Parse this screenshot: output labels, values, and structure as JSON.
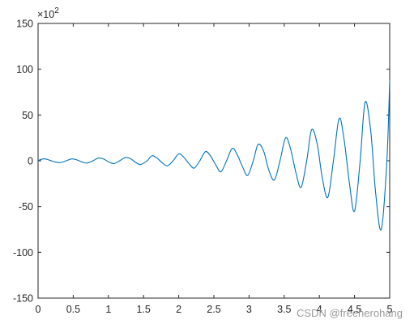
{
  "chart_data": {
    "type": "line",
    "title": "",
    "xlabel": "",
    "ylabel": "",
    "xlim": [
      0,
      5
    ],
    "ylim": [
      -150,
      150
    ],
    "y_exponent_label": "×10",
    "y_exponent_power": "2",
    "x_ticks": [
      "0",
      "0.5",
      "1",
      "1.5",
      "2",
      "2.5",
      "3",
      "3.5",
      "4",
      "4.5",
      "5"
    ],
    "y_ticks": [
      "150",
      "100",
      "50",
      "0",
      "-50",
      "-100",
      "-150"
    ],
    "x_tick_values": [
      0,
      0.5,
      1,
      1.5,
      2,
      2.5,
      3,
      3.5,
      4,
      4.5,
      5
    ],
    "y_tick_values": [
      150,
      100,
      50,
      0,
      -50,
      -100,
      -150
    ],
    "grid": false,
    "box": true,
    "series": [
      {
        "color": "#0072bd",
        "style": "oscillating sinusoid with exponentially growing amplitude",
        "points": [
          [
            0.0,
            0
          ],
          [
            0.04,
            1.5
          ],
          [
            0.1,
            2
          ],
          [
            0.17,
            0.5
          ],
          [
            0.25,
            -1.5
          ],
          [
            0.32,
            -2
          ],
          [
            0.4,
            0
          ],
          [
            0.48,
            2
          ],
          [
            0.55,
            1
          ],
          [
            0.63,
            -1.5
          ],
          [
            0.7,
            -2.5
          ],
          [
            0.78,
            0
          ],
          [
            0.86,
            3
          ],
          [
            0.93,
            2
          ],
          [
            1.01,
            -1.5
          ],
          [
            1.08,
            -3
          ],
          [
            1.16,
            0
          ],
          [
            1.24,
            3.5
          ],
          [
            1.31,
            2.5
          ],
          [
            1.39,
            -2
          ],
          [
            1.46,
            -4
          ],
          [
            1.55,
            0
          ],
          [
            1.62,
            5.5
          ],
          [
            1.69,
            3
          ],
          [
            1.77,
            -2.5
          ],
          [
            1.84,
            -5.5
          ],
          [
            1.92,
            0
          ],
          [
            2.0,
            7.5
          ],
          [
            2.07,
            4
          ],
          [
            2.15,
            -3.5
          ],
          [
            2.22,
            -8
          ],
          [
            2.3,
            0
          ],
          [
            2.38,
            10
          ],
          [
            2.45,
            5.5
          ],
          [
            2.53,
            -5
          ],
          [
            2.6,
            -12
          ],
          [
            2.68,
            0
          ],
          [
            2.76,
            13.5
          ],
          [
            2.83,
            7
          ],
          [
            2.91,
            -7
          ],
          [
            2.98,
            -16
          ],
          [
            3.06,
            0
          ],
          [
            3.13,
            18
          ],
          [
            3.21,
            10
          ],
          [
            3.28,
            -10
          ],
          [
            3.36,
            -21
          ],
          [
            3.44,
            0
          ],
          [
            3.52,
            25
          ],
          [
            3.59,
            13
          ],
          [
            3.67,
            -14
          ],
          [
            3.74,
            -29
          ],
          [
            3.82,
            0
          ],
          [
            3.89,
            34
          ],
          [
            3.97,
            18
          ],
          [
            4.04,
            -18
          ],
          [
            4.12,
            -40
          ],
          [
            4.2,
            0
          ],
          [
            4.28,
            46
          ],
          [
            4.35,
            24
          ],
          [
            4.43,
            -26
          ],
          [
            4.5,
            -55
          ],
          [
            4.58,
            0
          ],
          [
            4.65,
            64
          ],
          [
            4.73,
            33
          ],
          [
            4.8,
            -35
          ],
          [
            4.88,
            -75
          ],
          [
            4.96,
            0
          ],
          [
            5.0,
            88
          ]
        ]
      }
    ]
  },
  "watermark": "CSDN @freeherohang"
}
